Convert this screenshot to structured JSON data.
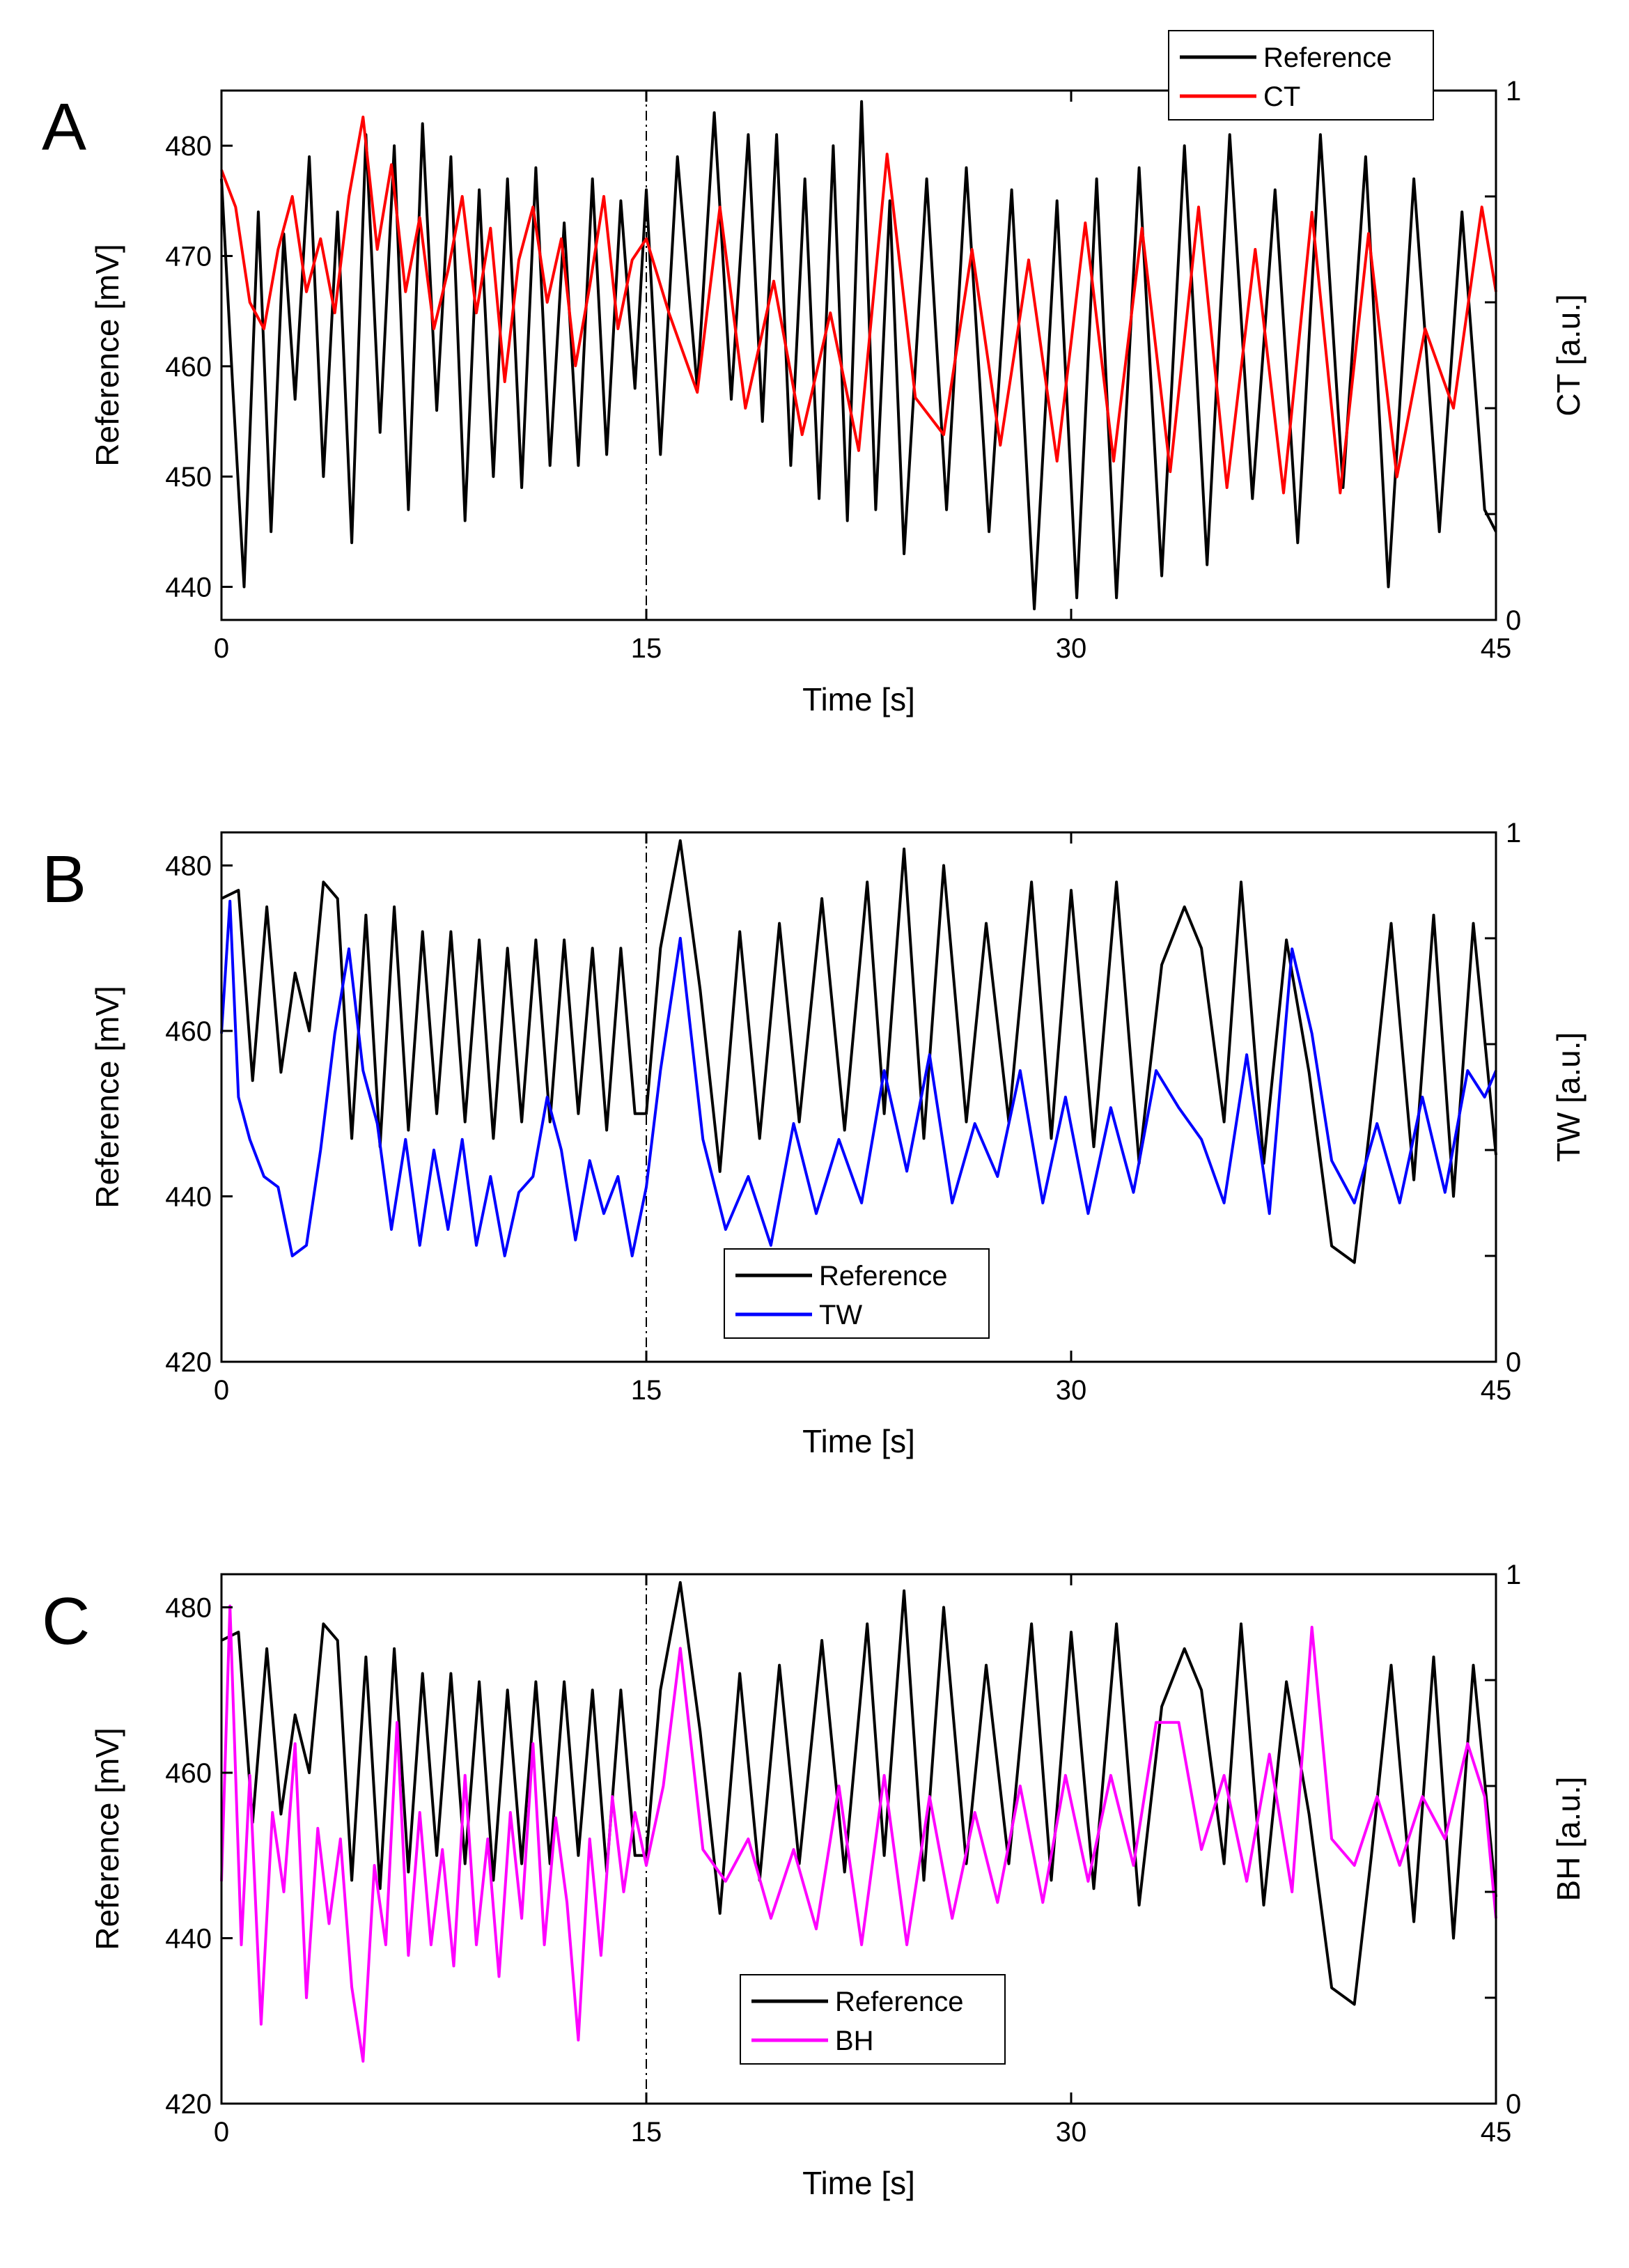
{
  "chart_data": [
    {
      "type": "line",
      "panel": "A",
      "xlabel": "Time [s]",
      "ylabel_left": "Reference [mV]",
      "ylabel_right": "CT [a.u.]",
      "xlim": [
        0,
        45
      ],
      "ylim_left": [
        437,
        485
      ],
      "ylim_right": [
        0,
        1
      ],
      "xticks": [
        "0",
        "15",
        "30",
        "45"
      ],
      "yticks_left": [
        "440",
        "450",
        "460",
        "470",
        "480"
      ],
      "yticks_right": [
        "0",
        "1"
      ],
      "divider_x": 15,
      "legend": {
        "placement": "top-right",
        "entries": [
          "Reference",
          "CT"
        ]
      },
      "series": [
        {
          "name": "Reference",
          "axis": "left",
          "color": "#000000",
          "x": [
            0,
            0.4,
            0.8,
            1.3,
            1.75,
            2.2,
            2.6,
            3.1,
            3.6,
            4.1,
            4.6,
            5.1,
            5.6,
            6.1,
            6.6,
            7.1,
            7.6,
            8.1,
            8.6,
            9.1,
            9.6,
            10.1,
            10.6,
            11.1,
            11.6,
            12.1,
            12.6,
            13.1,
            13.6,
            14.1,
            14.6,
            15.0,
            15.5,
            16.1,
            16.8,
            17.4,
            18.0,
            18.6,
            19.1,
            19.6,
            20.1,
            20.6,
            21.1,
            21.6,
            22.1,
            22.6,
            23.1,
            23.6,
            24.1,
            24.9,
            25.6,
            26.3,
            27.1,
            27.9,
            28.7,
            29.5,
            30.2,
            30.9,
            31.6,
            32.4,
            33.2,
            34.0,
            34.8,
            35.6,
            36.4,
            37.2,
            38.0,
            38.8,
            39.6,
            40.4,
            41.2,
            42.1,
            43.0,
            43.8,
            44.6,
            45
          ],
          "y": [
            477,
            458,
            440,
            474,
            445,
            472,
            457,
            479,
            450,
            474,
            444,
            481,
            454,
            480,
            447,
            482,
            456,
            479,
            446,
            476,
            450,
            477,
            449,
            478,
            451,
            473,
            451,
            477,
            452,
            475,
            458,
            476,
            452,
            479,
            458,
            483,
            457,
            481,
            455,
            481,
            451,
            477,
            448,
            480,
            446,
            484,
            447,
            475,
            443,
            477,
            447,
            478,
            445,
            476,
            438,
            475,
            439,
            477,
            439,
            478,
            441,
            480,
            442,
            481,
            448,
            476,
            444,
            481,
            449,
            479,
            440,
            477,
            445,
            474,
            447,
            445
          ]
        },
        {
          "name": "CT",
          "axis": "right",
          "color": "#ff0000",
          "x": [
            0,
            0.5,
            1.0,
            1.5,
            2.0,
            2.5,
            3.0,
            3.5,
            4.0,
            4.5,
            5.0,
            5.5,
            6.0,
            6.5,
            7.0,
            7.5,
            8.0,
            8.5,
            9.0,
            9.5,
            10.0,
            10.5,
            11.0,
            11.5,
            12.0,
            12.5,
            13.0,
            13.5,
            14.0,
            14.5,
            15.0,
            15.8,
            16.8,
            17.6,
            18.5,
            19.5,
            20.5,
            21.5,
            22.5,
            23.5,
            24.5,
            25.5,
            26.5,
            27.5,
            28.5,
            29.5,
            30.5,
            31.5,
            32.5,
            33.5,
            34.5,
            35.5,
            36.5,
            37.5,
            38.5,
            39.5,
            40.5,
            41.5,
            42.5,
            43.5,
            44.5,
            45
          ],
          "y": [
            0.85,
            0.78,
            0.6,
            0.55,
            0.7,
            0.8,
            0.62,
            0.72,
            0.58,
            0.8,
            0.95,
            0.7,
            0.86,
            0.62,
            0.76,
            0.55,
            0.66,
            0.8,
            0.58,
            0.74,
            0.45,
            0.68,
            0.78,
            0.6,
            0.72,
            0.48,
            0.63,
            0.8,
            0.55,
            0.68,
            0.72,
            0.58,
            0.43,
            0.78,
            0.4,
            0.64,
            0.35,
            0.58,
            0.32,
            0.88,
            0.42,
            0.35,
            0.7,
            0.33,
            0.68,
            0.3,
            0.75,
            0.3,
            0.74,
            0.28,
            0.78,
            0.25,
            0.7,
            0.24,
            0.77,
            0.24,
            0.73,
            0.27,
            0.55,
            0.4,
            0.78,
            0.62
          ]
        }
      ]
    },
    {
      "type": "line",
      "panel": "B",
      "xlabel": "Time [s]",
      "ylabel_left": "Reference [mV]",
      "ylabel_right": "TW [a.u.]",
      "xlim": [
        0,
        45
      ],
      "ylim_left": [
        420,
        484
      ],
      "ylim_right": [
        0,
        1
      ],
      "xticks": [
        "0",
        "15",
        "30",
        "45"
      ],
      "yticks_left": [
        "420",
        "440",
        "460",
        "480"
      ],
      "yticks_right": [
        "0",
        "1"
      ],
      "divider_x": 15,
      "legend": {
        "placement": "bottom-center",
        "entries": [
          "Reference",
          "TW"
        ]
      },
      "series": [
        {
          "name": "Reference",
          "axis": "left",
          "color": "#000000",
          "x": [
            0,
            0.6,
            1.1,
            1.6,
            2.1,
            2.6,
            3.1,
            3.6,
            4.1,
            4.6,
            5.1,
            5.6,
            6.1,
            6.6,
            7.1,
            7.6,
            8.1,
            8.6,
            9.1,
            9.6,
            10.1,
            10.6,
            11.1,
            11.6,
            12.1,
            12.6,
            13.1,
            13.6,
            14.1,
            14.6,
            15.0,
            15.5,
            16.2,
            16.9,
            17.6,
            18.3,
            19.0,
            19.7,
            20.4,
            21.2,
            22.0,
            22.8,
            23.4,
            24.1,
            24.8,
            25.5,
            26.3,
            27.0,
            27.8,
            28.6,
            29.3,
            30.0,
            30.8,
            31.6,
            32.4,
            33.2,
            34.0,
            34.6,
            35.4,
            36.0,
            36.8,
            37.6,
            38.4,
            39.2,
            40.0,
            40.6,
            41.3,
            42.1,
            42.8,
            43.5,
            44.2,
            45
          ],
          "y": [
            476,
            477,
            454,
            475,
            455,
            467,
            460,
            478,
            476,
            447,
            474,
            446,
            475,
            448,
            472,
            450,
            472,
            449,
            471,
            447,
            470,
            449,
            471,
            449,
            471,
            450,
            470,
            448,
            470,
            450,
            450,
            470,
            483,
            465,
            443,
            472,
            447,
            473,
            449,
            476,
            448,
            478,
            450,
            482,
            447,
            480,
            449,
            473,
            449,
            478,
            447,
            477,
            446,
            478,
            444,
            468,
            475,
            470,
            449,
            478,
            444,
            471,
            455,
            434,
            432,
            450,
            473,
            442,
            474,
            440,
            473,
            445
          ]
        },
        {
          "name": "TW",
          "axis": "right",
          "color": "#0000ff",
          "x": [
            0,
            0.3,
            0.6,
            1.0,
            1.5,
            2.0,
            2.5,
            3.0,
            3.5,
            4.0,
            4.5,
            5.0,
            5.5,
            6.0,
            6.5,
            7.0,
            7.5,
            8.0,
            8.5,
            9.0,
            9.5,
            10.0,
            10.5,
            11.0,
            11.5,
            12.0,
            12.5,
            13.0,
            13.5,
            14.0,
            14.5,
            15.0,
            15.5,
            16.2,
            17.0,
            17.8,
            18.6,
            19.4,
            20.2,
            21.0,
            21.8,
            22.6,
            23.4,
            24.2,
            25.0,
            25.8,
            26.6,
            27.4,
            28.2,
            29.0,
            29.8,
            30.6,
            31.4,
            32.2,
            33.0,
            33.8,
            34.6,
            35.4,
            36.2,
            37.0,
            37.8,
            38.5,
            39.2,
            40.0,
            40.8,
            41.6,
            42.4,
            43.2,
            44.0,
            44.6,
            45
          ],
          "y": [
            0.62,
            0.87,
            0.5,
            0.42,
            0.35,
            0.33,
            0.2,
            0.22,
            0.4,
            0.62,
            0.78,
            0.55,
            0.45,
            0.25,
            0.42,
            0.22,
            0.4,
            0.25,
            0.42,
            0.22,
            0.35,
            0.2,
            0.32,
            0.35,
            0.5,
            0.4,
            0.23,
            0.38,
            0.28,
            0.35,
            0.2,
            0.33,
            0.55,
            0.8,
            0.42,
            0.25,
            0.35,
            0.22,
            0.45,
            0.28,
            0.42,
            0.3,
            0.55,
            0.36,
            0.58,
            0.3,
            0.45,
            0.35,
            0.55,
            0.3,
            0.5,
            0.28,
            0.48,
            0.32,
            0.55,
            0.48,
            0.42,
            0.3,
            0.58,
            0.28,
            0.78,
            0.62,
            0.38,
            0.3,
            0.45,
            0.3,
            0.5,
            0.32,
            0.55,
            0.5,
            0.55
          ]
        }
      ]
    },
    {
      "type": "line",
      "panel": "C",
      "xlabel": "Time [s]",
      "ylabel_left": "Reference [mV]",
      "ylabel_right": "BH [a.u.]",
      "xlim": [
        0,
        45
      ],
      "ylim_left": [
        420,
        484
      ],
      "ylim_right": [
        0,
        1
      ],
      "xticks": [
        "0",
        "15",
        "30",
        "45"
      ],
      "yticks_left": [
        "420",
        "440",
        "460",
        "480"
      ],
      "yticks_right": [
        "0",
        "1"
      ],
      "divider_x": 15,
      "legend": {
        "placement": "bottom-center",
        "entries": [
          "Reference",
          "BH"
        ]
      },
      "series": [
        {
          "name": "Reference",
          "axis": "left",
          "color": "#000000",
          "x": [
            0,
            0.6,
            1.1,
            1.6,
            2.1,
            2.6,
            3.1,
            3.6,
            4.1,
            4.6,
            5.1,
            5.6,
            6.1,
            6.6,
            7.1,
            7.6,
            8.1,
            8.6,
            9.1,
            9.6,
            10.1,
            10.6,
            11.1,
            11.6,
            12.1,
            12.6,
            13.1,
            13.6,
            14.1,
            14.6,
            15.0,
            15.5,
            16.2,
            16.9,
            17.6,
            18.3,
            19.0,
            19.7,
            20.4,
            21.2,
            22.0,
            22.8,
            23.4,
            24.1,
            24.8,
            25.5,
            26.3,
            27.0,
            27.8,
            28.6,
            29.3,
            30.0,
            30.8,
            31.6,
            32.4,
            33.2,
            34.0,
            34.6,
            35.4,
            36.0,
            36.8,
            37.6,
            38.4,
            39.2,
            40.0,
            40.6,
            41.3,
            42.1,
            42.8,
            43.5,
            44.2,
            45
          ],
          "y": [
            476,
            477,
            454,
            475,
            455,
            467,
            460,
            478,
            476,
            447,
            474,
            446,
            475,
            448,
            472,
            450,
            472,
            449,
            471,
            447,
            470,
            449,
            471,
            449,
            471,
            450,
            470,
            448,
            470,
            450,
            450,
            470,
            483,
            465,
            443,
            472,
            447,
            473,
            449,
            476,
            448,
            478,
            450,
            482,
            447,
            480,
            449,
            473,
            449,
            478,
            447,
            477,
            446,
            478,
            444,
            468,
            475,
            470,
            449,
            478,
            444,
            471,
            455,
            434,
            432,
            450,
            473,
            442,
            474,
            440,
            473,
            445
          ]
        },
        {
          "name": "BH",
          "axis": "right",
          "color": "#ff00ff",
          "x": [
            0,
            0.3,
            0.7,
            1.0,
            1.4,
            1.8,
            2.2,
            2.6,
            3.0,
            3.4,
            3.8,
            4.2,
            4.6,
            5.0,
            5.4,
            5.8,
            6.2,
            6.6,
            7.0,
            7.4,
            7.8,
            8.2,
            8.6,
            9.0,
            9.4,
            9.8,
            10.2,
            10.6,
            11.0,
            11.4,
            11.8,
            12.2,
            12.6,
            13.0,
            13.4,
            13.8,
            14.2,
            14.6,
            15.0,
            15.6,
            16.2,
            17.0,
            17.8,
            18.6,
            19.4,
            20.2,
            21.0,
            21.8,
            22.6,
            23.4,
            24.2,
            25.0,
            25.8,
            26.6,
            27.4,
            28.2,
            29.0,
            29.8,
            30.6,
            31.4,
            32.2,
            33.0,
            33.8,
            34.6,
            35.4,
            36.2,
            37.0,
            37.8,
            38.5,
            39.2,
            40.0,
            40.8,
            41.6,
            42.4,
            43.2,
            44.0,
            44.6,
            45
          ],
          "y": [
            0.42,
            0.94,
            0.3,
            0.62,
            0.15,
            0.55,
            0.4,
            0.68,
            0.2,
            0.52,
            0.34,
            0.5,
            0.22,
            0.08,
            0.45,
            0.3,
            0.72,
            0.28,
            0.55,
            0.3,
            0.48,
            0.26,
            0.62,
            0.3,
            0.5,
            0.24,
            0.55,
            0.35,
            0.68,
            0.3,
            0.54,
            0.38,
            0.12,
            0.5,
            0.28,
            0.58,
            0.4,
            0.55,
            0.45,
            0.6,
            0.86,
            0.48,
            0.42,
            0.5,
            0.35,
            0.48,
            0.33,
            0.6,
            0.3,
            0.62,
            0.3,
            0.58,
            0.35,
            0.55,
            0.38,
            0.6,
            0.38,
            0.62,
            0.42,
            0.62,
            0.45,
            0.72,
            0.72,
            0.48,
            0.62,
            0.42,
            0.66,
            0.4,
            0.9,
            0.5,
            0.45,
            0.58,
            0.45,
            0.58,
            0.5,
            0.68,
            0.58,
            0.35
          ]
        }
      ]
    }
  ]
}
